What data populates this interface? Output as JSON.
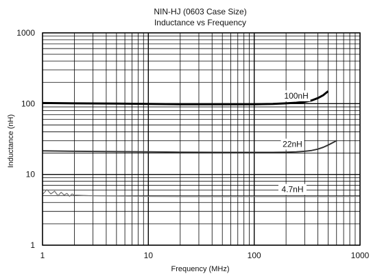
{
  "chart_data": {
    "type": "line",
    "title": "NIN-HJ (0603 Case Size)",
    "subtitle": "Inductance vs Frequency",
    "xlabel": "Frequency (MHz)",
    "ylabel": "Inductance (nH)",
    "x_scale": "log",
    "y_scale": "log",
    "xlim": [
      1,
      1000
    ],
    "ylim": [
      1,
      1000
    ],
    "x_ticks": [
      "1",
      "10",
      "100",
      "1000"
    ],
    "y_ticks": [
      "1",
      "10",
      "100",
      "1000"
    ],
    "grid": true,
    "legend": "none",
    "series": [
      {
        "name": "100nH",
        "color": "#000000",
        "x": [
          1,
          2,
          5,
          10,
          20,
          50,
          100,
          150,
          200,
          250,
          300,
          350,
          400,
          450,
          500
        ],
        "y": [
          102,
          101,
          100,
          99,
          98,
          98,
          98,
          99,
          101,
          103,
          106,
          111,
          120,
          132,
          150
        ]
      },
      {
        "name": "22nH",
        "color": "#333333",
        "x": [
          1,
          2,
          5,
          10,
          20,
          50,
          100,
          150,
          200,
          250,
          300,
          350,
          400,
          450,
          500,
          550,
          600
        ],
        "y": [
          21.5,
          21.2,
          21,
          20.8,
          20.6,
          20.5,
          20.5,
          20.5,
          20.6,
          20.8,
          21.2,
          21.8,
          22.8,
          24.2,
          26,
          28,
          30
        ]
      },
      {
        "name": "4.7nH",
        "color": "#777777",
        "x": [
          1,
          1.1,
          1.2,
          1.3,
          1.4,
          1.5,
          1.6,
          1.7,
          1.8,
          1.9,
          2,
          3,
          5,
          10,
          20,
          50,
          100,
          200,
          500,
          1000
        ],
        "y": [
          5.2,
          6.1,
          5.3,
          5.8,
          5.0,
          5.6,
          5.1,
          5.4,
          4.9,
          5.3,
          5.1,
          5.0,
          4.95,
          4.9,
          4.85,
          4.85,
          4.85,
          4.85,
          4.85,
          4.9
        ]
      }
    ]
  }
}
